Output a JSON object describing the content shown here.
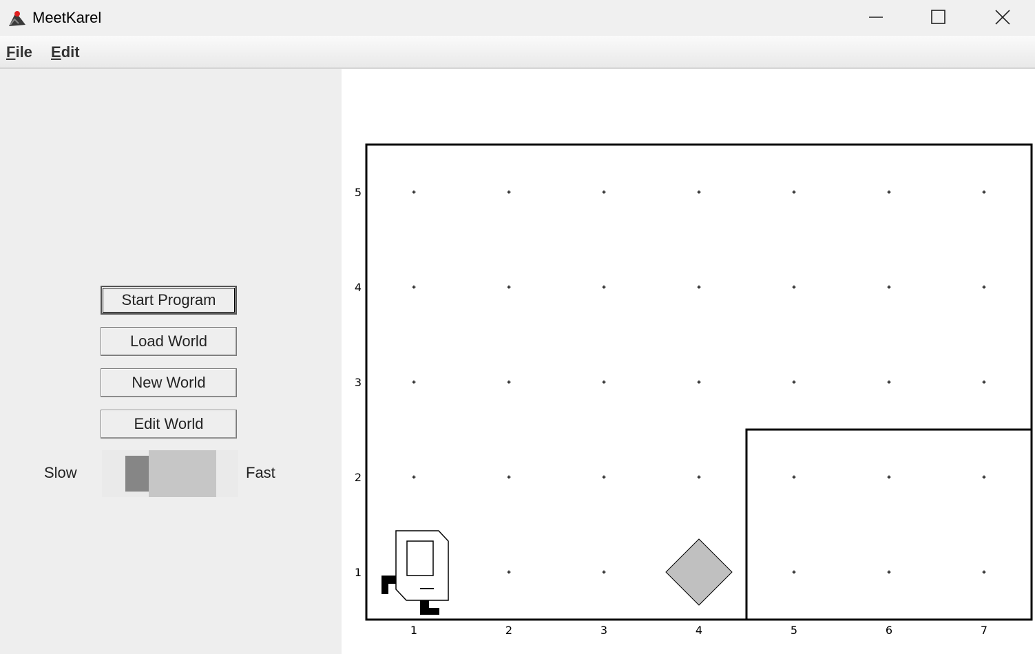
{
  "window": {
    "title": "MeetKarel",
    "icon": "java-duke-icon",
    "controls": [
      "minimize-icon",
      "maximize-icon",
      "close-icon"
    ]
  },
  "menubar": {
    "items": [
      {
        "label": "File",
        "mnemonic": "F",
        "rest": "ile"
      },
      {
        "label": "Edit",
        "mnemonic": "E",
        "rest": "dit"
      }
    ]
  },
  "controls": {
    "start_program": "Start Program",
    "load_world": "Load World",
    "new_world": "New World",
    "edit_world": "Edit World",
    "speed": {
      "slow_label": "Slow",
      "fast_label": "Fast",
      "level": 0.25
    }
  },
  "world": {
    "columns": 7,
    "rows": 5,
    "x_labels": [
      "1",
      "2",
      "3",
      "4",
      "5",
      "6",
      "7"
    ],
    "y_labels": [
      "1",
      "2",
      "3",
      "4",
      "5"
    ],
    "karel": {
      "avenue": 1,
      "street": 1,
      "facing": "east"
    },
    "beepers": [
      {
        "avenue": 4,
        "street": 1
      }
    ],
    "walls": [
      {
        "note": "wall segment enclosing avenues 5-7, streets 1-2 (west side and top)"
      }
    ],
    "colors": {
      "border": "#000000",
      "beeper": "#c0c0c0",
      "background": "#ffffff"
    }
  }
}
